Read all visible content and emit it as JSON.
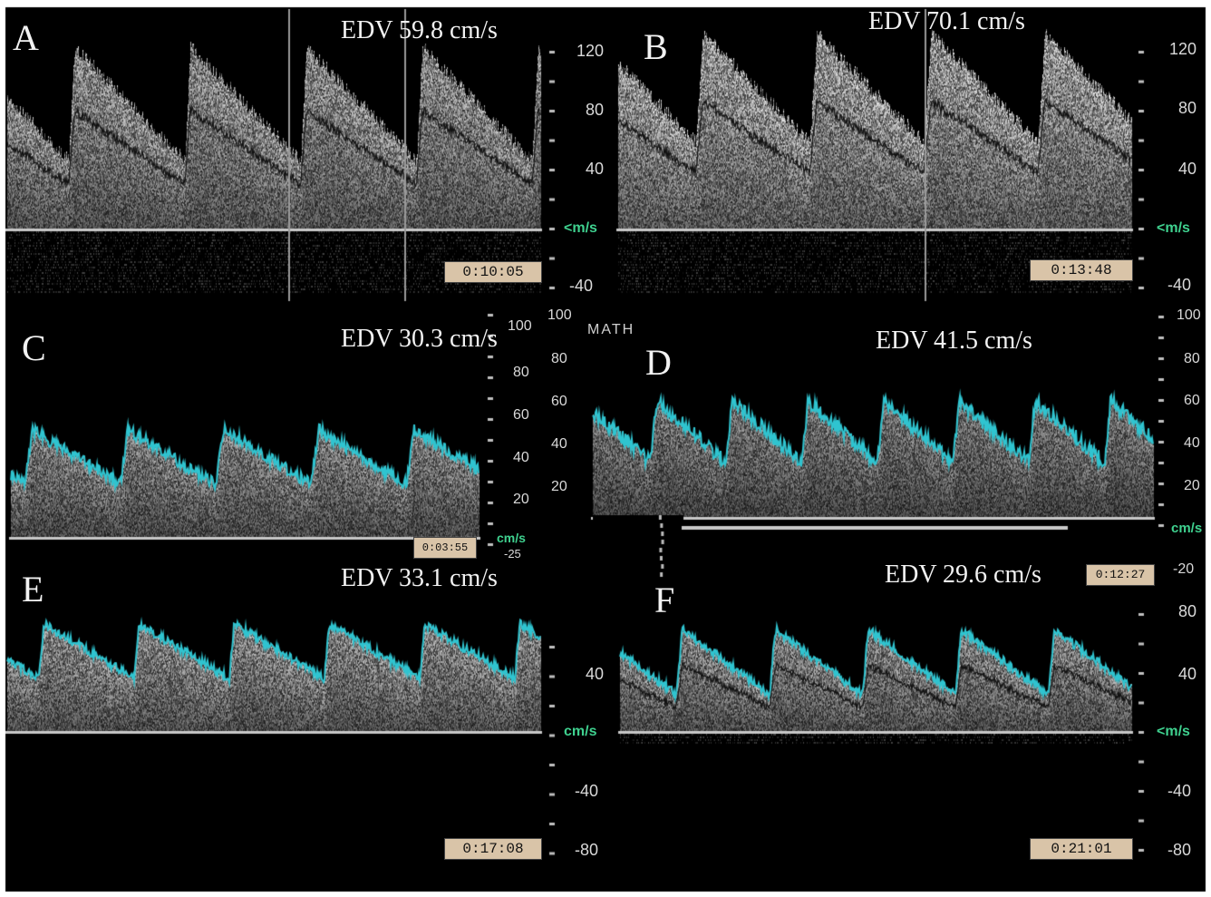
{
  "colors": {
    "background": "#000000",
    "frame": "#ffffff",
    "trace": "#2fc4d0",
    "baseline": "#c8c8c8",
    "timestamp_bg": "#d9c4a8",
    "unit_text": "#3fd18f",
    "label_text": "#f2f2f2"
  },
  "panels": [
    {
      "letter": "A",
      "edv": "EDV 59.8 cm/s",
      "timestamp": "0:10:05",
      "ticks": [
        "120",
        "80",
        "40",
        "-40"
      ],
      "unit": "<m/s"
    },
    {
      "letter": "B",
      "edv": "EDV 70.1 cm/s",
      "timestamp": "0:13:48",
      "ticks": [
        "120",
        "80",
        "40",
        "-40"
      ],
      "unit": "<m/s"
    },
    {
      "letter": "C",
      "edv": "EDV 30.3 cm/s",
      "timestamp": "0:03:55",
      "ticks": [
        "100",
        "80",
        "60",
        "40",
        "20",
        "-25"
      ],
      "unit": "cm/s"
    },
    {
      "letter": "D",
      "edv": "EDV 41.5 cm/s",
      "timestamp": "0:12:27",
      "ticks": [
        "100",
        "80",
        "60",
        "40",
        "20",
        "-20"
      ],
      "unit": "cm/s",
      "extra": "MATH"
    },
    {
      "letter": "E",
      "edv": "EDV 33.1 cm/s",
      "timestamp": "0:17:08",
      "ticks": [
        "40",
        "-40",
        "-80"
      ],
      "unit": "cm/s"
    },
    {
      "letter": "F",
      "edv": "EDV 29.6 cm/s",
      "timestamp": "0:21:01",
      "ticks": [
        "80",
        "40",
        "-40",
        "-80"
      ],
      "unit": "<m/s"
    }
  ],
  "mid_scale_ticks": [
    "100",
    "80",
    "60",
    "40",
    "20"
  ]
}
